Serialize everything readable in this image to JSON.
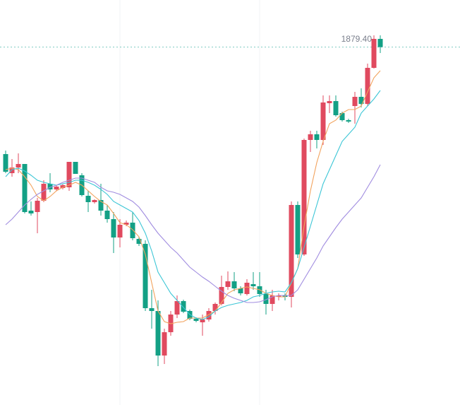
{
  "chart_data": {
    "type": "candlestick",
    "ylim": [
      1373,
      1946
    ],
    "up_color": "#e04a5f",
    "down_color": "#13a085",
    "last_price_label": "1879.40",
    "candles": {
      "open": [
        1728,
        1701,
        1709,
        1714,
        1648,
        1646,
        1662,
        1686,
        1678,
        1680,
        1681,
        1717,
        1698,
        1669,
        1660,
        1663,
        1648,
        1636,
        1610,
        1628,
        1631,
        1608,
        1601,
        1510,
        1506,
        1443,
        1476,
        1501,
        1520,
        1506,
        1495,
        1490,
        1494,
        1506,
        1516,
        1540,
        1548,
        1538,
        1530,
        1544,
        1541,
        1530,
        1516,
        1526,
        1528,
        1526,
        1656,
        1586,
        1748,
        1756,
        1748,
        1800,
        1803,
        1786,
        1776,
        1796,
        1809,
        1799,
        1850,
        1891
      ],
      "high": [
        1733,
        1721,
        1729,
        1714,
        1661,
        1666,
        1691,
        1701,
        1684,
        1686,
        1717,
        1717,
        1701,
        1676,
        1664,
        1686,
        1656,
        1646,
        1636,
        1634,
        1646,
        1611,
        1606,
        1536,
        1521,
        1481,
        1506,
        1528,
        1522,
        1508,
        1497,
        1501,
        1510,
        1518,
        1556,
        1562,
        1561,
        1541,
        1551,
        1561,
        1561,
        1536,
        1536,
        1531,
        1531,
        1661,
        1661,
        1750,
        1761,
        1761,
        1811,
        1811,
        1811,
        1788,
        1778,
        1816,
        1821,
        1856,
        1896,
        1896
      ],
      "low": [
        1701,
        1696,
        1701,
        1644,
        1641,
        1616,
        1660,
        1674,
        1676,
        1678,
        1676,
        1700,
        1668,
        1646,
        1658,
        1641,
        1631,
        1588,
        1596,
        1626,
        1606,
        1598,
        1506,
        1481,
        1428,
        1431,
        1471,
        1496,
        1503,
        1493,
        1490,
        1471,
        1491,
        1501,
        1514,
        1536,
        1534,
        1528,
        1528,
        1536,
        1526,
        1501,
        1506,
        1521,
        1521,
        1511,
        1581,
        1584,
        1731,
        1736,
        1741,
        1786,
        1781,
        1774,
        1772,
        1771,
        1794,
        1796,
        1849,
        1871
      ],
      "close": [
        1703,
        1709,
        1714,
        1646,
        1644,
        1662,
        1686,
        1678,
        1682,
        1684,
        1717,
        1700,
        1670,
        1660,
        1663,
        1648,
        1636,
        1610,
        1628,
        1631,
        1609,
        1601,
        1510,
        1506,
        1443,
        1476,
        1501,
        1520,
        1505,
        1495,
        1492,
        1494,
        1506,
        1516,
        1540,
        1548,
        1538,
        1531,
        1546,
        1541,
        1530,
        1516,
        1528,
        1528,
        1526,
        1656,
        1586,
        1748,
        1756,
        1748,
        1801,
        1803,
        1783,
        1776,
        1774,
        1809,
        1799,
        1850,
        1891,
        1879.4
      ]
    },
    "lines": [
      {
        "color": "#f2a35e",
        "values": [
          1706,
          1708,
          1706,
          1696,
          1684,
          1668,
          1662,
          1668,
          1676,
          1681,
          1684,
          1688,
          1684,
          1676,
          1668,
          1661,
          1656,
          1644,
          1631,
          1628,
          1621,
          1611,
          1586,
          1546,
          1506,
          1491,
          1488,
          1490,
          1491,
          1496,
          1496,
          1496,
          1501,
          1506,
          1518,
          1531,
          1536,
          1538,
          1540,
          1538,
          1536,
          1531,
          1528,
          1526,
          1526,
          1546,
          1566,
          1626,
          1676,
          1716,
          1746,
          1771,
          1776,
          1786,
          1791,
          1791,
          1796,
          1816,
          1836,
          1846
        ]
      },
      {
        "color": "#3cc6d6",
        "values": [
          1696,
          1706,
          1708,
          1704,
          1698,
          1691,
          1688,
          1686,
          1684,
          1686,
          1688,
          1691,
          1691,
          1688,
          1684,
          1678,
          1671,
          1661,
          1656,
          1651,
          1646,
          1634,
          1616,
          1591,
          1561,
          1546,
          1531,
          1521,
          1511,
          1501,
          1496,
          1494,
          1498,
          1506,
          1511,
          1514,
          1516,
          1518,
          1521,
          1526,
          1528,
          1531,
          1533,
          1534,
          1533,
          1546,
          1566,
          1596,
          1626,
          1656,
          1686,
          1706,
          1726,
          1746,
          1756,
          1766,
          1786,
          1796,
          1806,
          1818
        ]
      },
      {
        "color": "#a18de0",
        "values": [
          1628,
          1636,
          1646,
          1656,
          1664,
          1671,
          1676,
          1681,
          1684,
          1688,
          1691,
          1694,
          1694,
          1691,
          1688,
          1681,
          1676,
          1674,
          1671,
          1666,
          1661,
          1653,
          1641,
          1628,
          1616,
          1606,
          1596,
          1588,
          1578,
          1568,
          1561,
          1554,
          1548,
          1541,
          1534,
          1528,
          1524,
          1521,
          1518,
          1518,
          1519,
          1522,
          1526,
          1528,
          1528,
          1528,
          1536,
          1551,
          1566,
          1581,
          1598,
          1611,
          1624,
          1636,
          1646,
          1656,
          1666,
          1681,
          1696,
          1713
        ]
      }
    ]
  }
}
